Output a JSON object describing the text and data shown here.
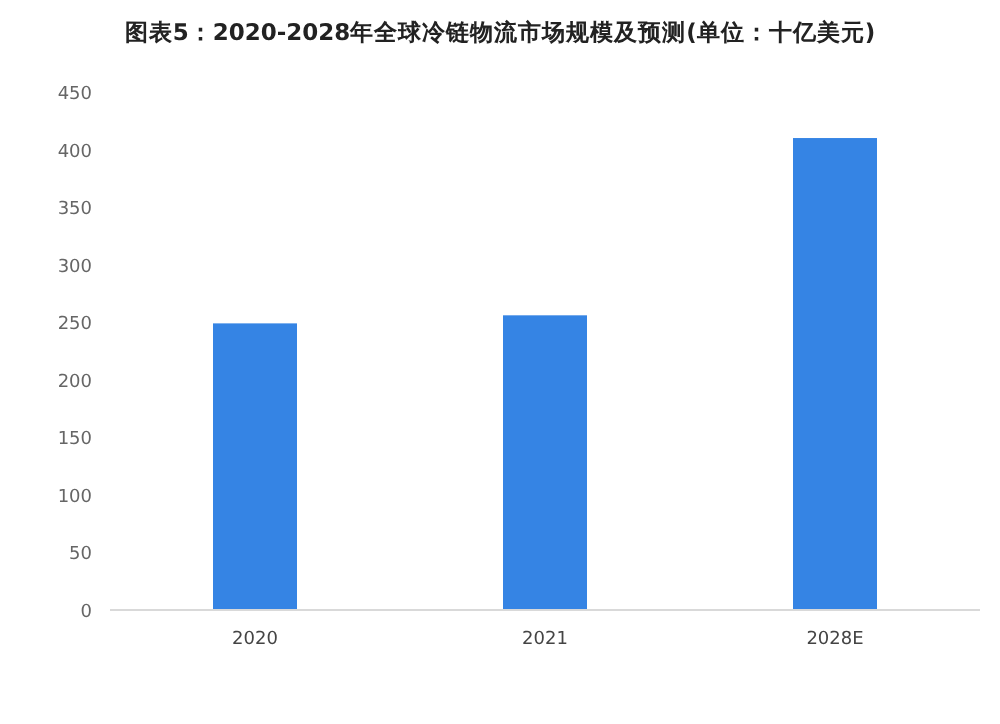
{
  "chart_data": {
    "type": "bar",
    "title": "图表5：2020-2028年全球冷链物流市场规模及预测(单位：十亿美元)",
    "categories": [
      "2020",
      "2021",
      "2028E"
    ],
    "values": [
      249,
      256,
      410
    ],
    "color": "#3584e4",
    "ylim": [
      0,
      450
    ],
    "yticks": [
      0,
      50,
      100,
      150,
      200,
      250,
      300,
      350,
      400,
      450
    ],
    "grid": false
  }
}
